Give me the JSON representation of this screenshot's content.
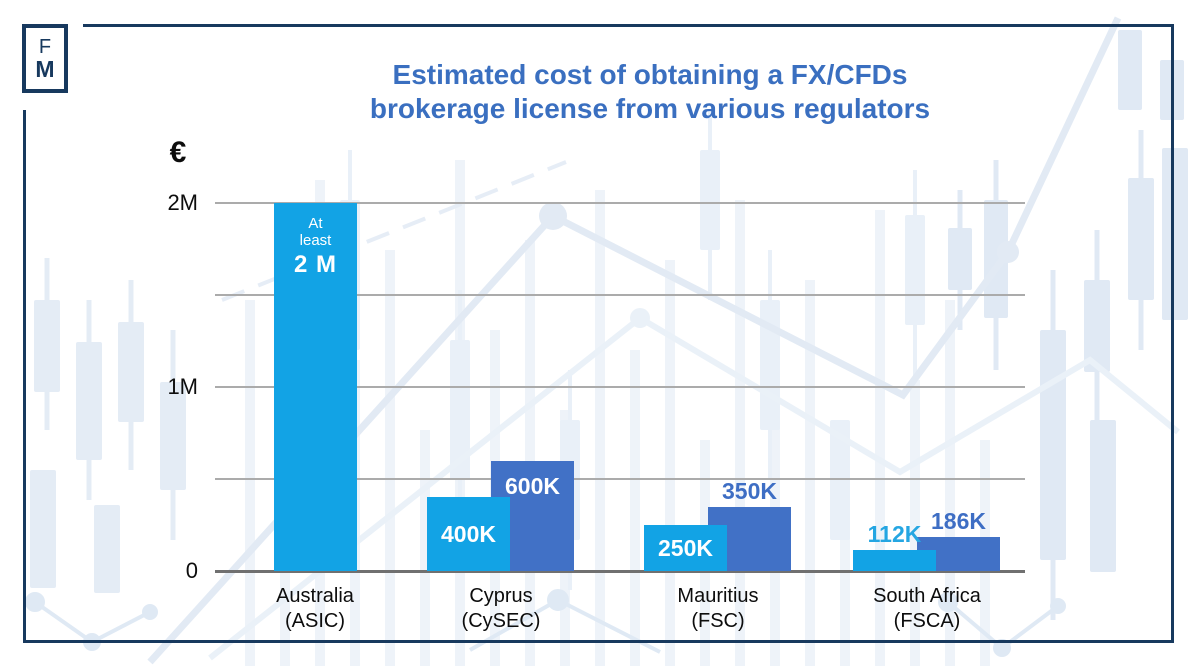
{
  "logo": {
    "letter_top": "F",
    "letter_bottom": "M"
  },
  "header": {
    "title_line1": "Estimated cost of obtaining a FX/CFDs",
    "title_line2": "brokerage license from various regulators"
  },
  "colors": {
    "title_blue": "#3A6FC0",
    "frame_navy": "#17395E",
    "light_bar": "#12A3E5",
    "dark_bar": "#4171C6",
    "label_on_light": "#25A6E2",
    "label_on_dark": "#3E6EC4",
    "gridline": "#ABABAB",
    "baseline": "#707070",
    "axis_text": "#0D0D0D",
    "bar_text_white": "#FFFFFF"
  },
  "chart_data": {
    "type": "bar",
    "title": "Estimated cost of obtaining a FX/CFDs brokerage license from various regulators",
    "currency_symbol": "€",
    "unit": "EUR",
    "ylabel": "€",
    "ylim_k": [
      0,
      2000
    ],
    "grid": true,
    "legend": false,
    "yticks": [
      {
        "value_k": 2000,
        "label": "2M"
      },
      {
        "value_k": 1500,
        "label": ""
      },
      {
        "value_k": 1000,
        "label": "1M"
      },
      {
        "value_k": 500,
        "label": ""
      },
      {
        "value_k": 0,
        "label": "0"
      }
    ],
    "groups": [
      {
        "category": "Australia",
        "regulator": "(ASIC)",
        "bars": [
          {
            "value_k": 2000,
            "shade": "light",
            "note": "At least",
            "label": "2 M",
            "label_position": "inside-top"
          }
        ]
      },
      {
        "category": "Cyprus",
        "regulator": "(CySEC)",
        "bars": [
          {
            "value_k": 400,
            "shade": "light",
            "label": "400K",
            "label_position": "inside-middle"
          },
          {
            "value_k": 600,
            "shade": "dark",
            "label": "600K",
            "label_position": "inside-top"
          }
        ]
      },
      {
        "category": "Mauritius",
        "regulator": "(FSC)",
        "bars": [
          {
            "value_k": 250,
            "shade": "light",
            "label": "250K",
            "label_position": "inside-middle"
          },
          {
            "value_k": 350,
            "shade": "dark",
            "label": "350K",
            "label_position": "above"
          }
        ]
      },
      {
        "category": "South Africa",
        "regulator": "(FSCA)",
        "bars": [
          {
            "value_k": 112,
            "shade": "light",
            "label": "112K",
            "label_position": "above"
          },
          {
            "value_k": 186,
            "shade": "dark",
            "label": "186K",
            "label_position": "above"
          }
        ]
      }
    ]
  }
}
